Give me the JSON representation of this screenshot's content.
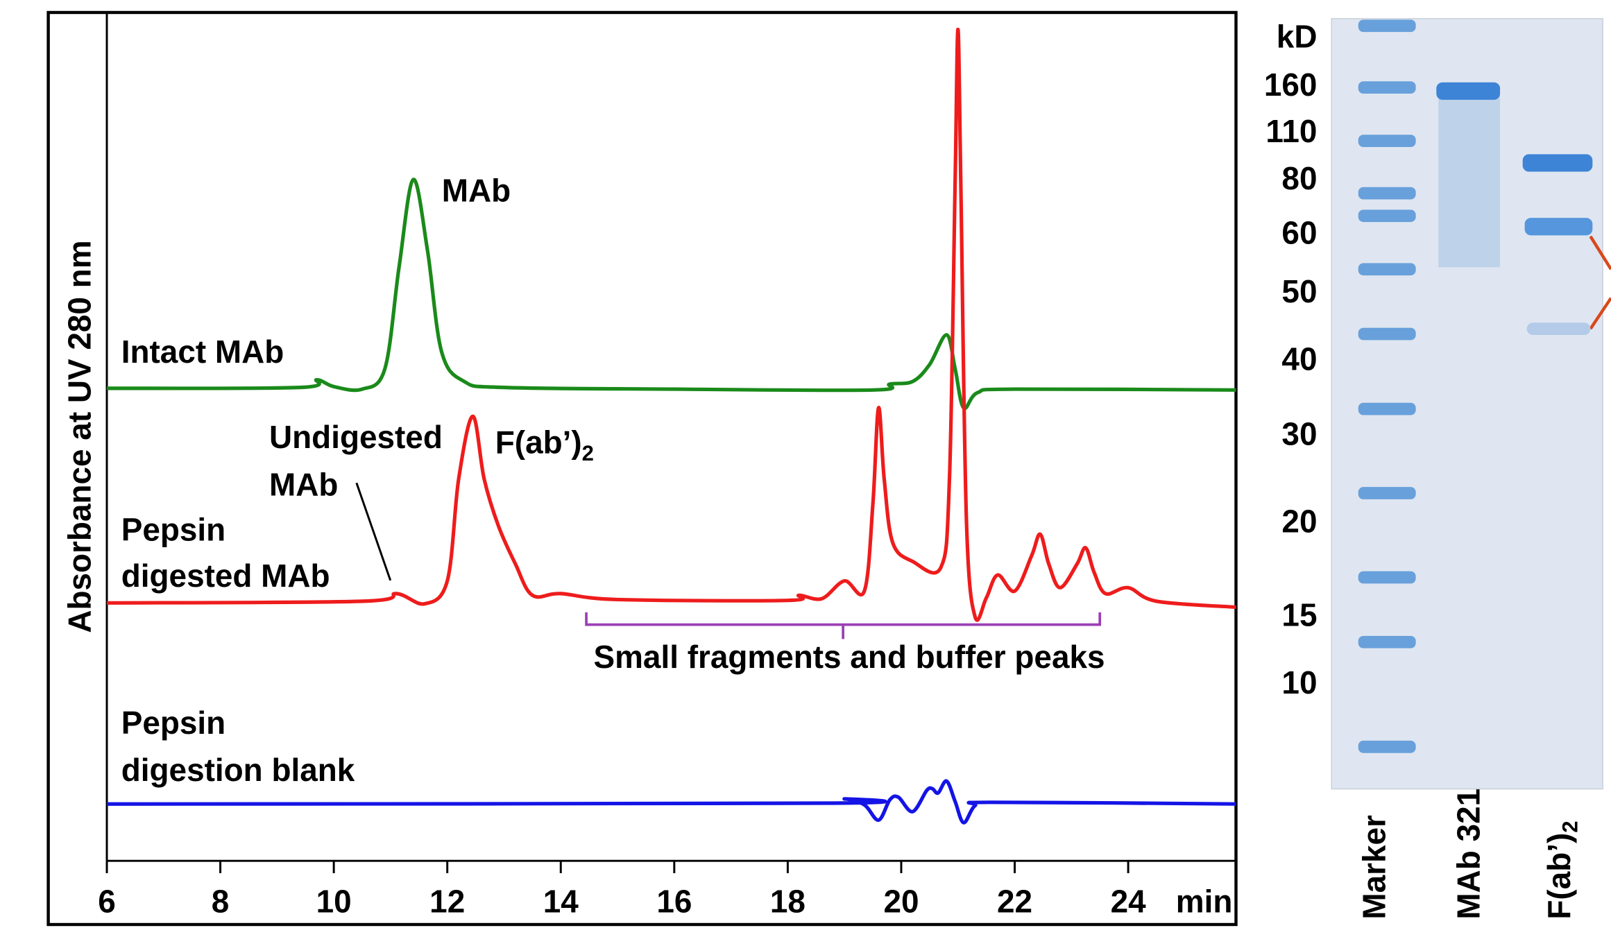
{
  "chart_data": {
    "type": "line",
    "y_label": "Absorbance at UV 280 nm",
    "x_unit": "min",
    "xlim": [
      6,
      25.9
    ],
    "xticks": [
      6,
      8,
      10,
      12,
      14,
      16,
      18,
      20,
      22,
      24
    ],
    "ylim": [
      0,
      100
    ],
    "series": [
      {
        "name": [
          "Intact MAb"
        ],
        "color": "#1a8a1a",
        "x": [
          6,
          9.4,
          9.7,
          10.0,
          10.5,
          10.9,
          11.15,
          11.4,
          11.65,
          11.9,
          12.3,
          13.0,
          16,
          19.5,
          19.8,
          20.2,
          20.5,
          20.8,
          20.95,
          21.1,
          21.35,
          22,
          25.9
        ],
        "values": [
          55.7,
          55.8,
          56.7,
          55.9,
          55.6,
          58,
          70,
          80.3,
          72,
          60,
          56.5,
          55.8,
          55.6,
          55.5,
          56.2,
          56.5,
          58.5,
          62,
          58,
          53.4,
          55.2,
          55.6,
          55.5
        ]
      },
      {
        "name": [
          "Pepsin",
          "digested MAb"
        ],
        "color": "#ee1c1c",
        "x": [
          6,
          10.5,
          11.1,
          11.6,
          12.0,
          12.2,
          12.45,
          12.65,
          12.9,
          13.2,
          13.5,
          14.0,
          15,
          18.0,
          18.2,
          18.6,
          19.0,
          19.35,
          19.5,
          19.6,
          19.7,
          19.85,
          20.2,
          20.7,
          20.85,
          20.95,
          21.0,
          21.05,
          21.15,
          21.3,
          21.5,
          21.7,
          22.0,
          22.3,
          22.45,
          22.6,
          22.8,
          23.1,
          23.25,
          23.4,
          23.6,
          24.0,
          24.5,
          25.9
        ],
        "values": [
          30.4,
          30.6,
          31.5,
          30.3,
          33,
          45,
          52.4,
          45,
          39.5,
          35,
          31.3,
          31.5,
          30.8,
          30.7,
          31.3,
          30.9,
          33.0,
          31.8,
          42,
          53.4,
          45,
          37.5,
          35.3,
          34.6,
          45,
          80,
          98,
          80,
          40,
          28.8,
          31,
          33.7,
          31.8,
          36,
          38.5,
          35,
          32.2,
          35,
          36.9,
          34,
          31.5,
          32.2,
          30.6,
          29.9
        ]
      },
      {
        "name": [
          "Pepsin",
          "digestion blank"
        ],
        "color": "#1414e6",
        "x": [
          6,
          18.7,
          19.0,
          19.35,
          19.6,
          19.8,
          19.95,
          20.2,
          20.45,
          20.55,
          20.65,
          20.8,
          20.95,
          21.1,
          21.3,
          21.6,
          25.9
        ],
        "values": [
          6.7,
          6.8,
          7.3,
          6.6,
          4.8,
          7.2,
          7.5,
          5.8,
          8.3,
          8.5,
          8.0,
          9.4,
          7.0,
          4.5,
          6.5,
          6.9,
          6.7
        ]
      }
    ],
    "annotations": [
      {
        "text": [
          "MAb"
        ]
      },
      {
        "text": [
          "Undigested",
          "MAb"
        ]
      },
      {
        "text": [
          "F(ab’)"
        ],
        "sub": "2"
      }
    ],
    "bracket": {
      "text": "Small fragments and buffer peaks",
      "color": "#9b3fb5",
      "xrange": [
        14.45,
        23.5
      ]
    }
  },
  "gel": {
    "unit": "kD",
    "marker_labels": [
      "160",
      "110",
      "80",
      "60",
      "50",
      "40",
      "30",
      "20",
      "15",
      "10"
    ],
    "lanes": [
      {
        "text": "Marker"
      },
      {
        "text": "MAb 321"
      },
      {
        "text": "F(ab’)",
        "sub": "2"
      }
    ]
  }
}
